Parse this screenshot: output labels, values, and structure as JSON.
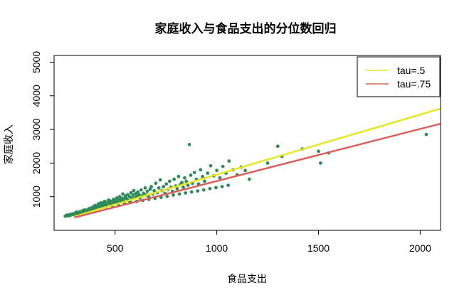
{
  "chart_data": {
    "type": "scatter",
    "title": "家庭收入与食品支出的分位数回归",
    "xlabel": "食品支出",
    "ylabel": "家庭收入",
    "xlim": [
      200,
      2100
    ],
    "ylim": [
      0,
      5200
    ],
    "x_ticks": [
      "500",
      "1000",
      "1500",
      "2000"
    ],
    "y_ticks": [
      "1000",
      "2000",
      "3000",
      "4000",
      "5000"
    ],
    "grid": false,
    "legend_position": "top-right",
    "point_color": "#2e8b57",
    "points": [
      [
        255,
        420
      ],
      [
        262,
        450
      ],
      [
        268,
        430
      ],
      [
        275,
        470
      ],
      [
        280,
        440
      ],
      [
        290,
        490
      ],
      [
        298,
        460
      ],
      [
        305,
        520
      ],
      [
        312,
        500
      ],
      [
        318,
        480
      ],
      [
        325,
        550
      ],
      [
        332,
        530
      ],
      [
        340,
        580
      ],
      [
        345,
        520
      ],
      [
        350,
        610
      ],
      [
        358,
        560
      ],
      [
        362,
        600
      ],
      [
        370,
        640
      ],
      [
        375,
        590
      ],
      [
        380,
        660
      ],
      [
        385,
        620
      ],
      [
        392,
        700
      ],
      [
        398,
        650
      ],
      [
        402,
        740
      ],
      [
        408,
        680
      ],
      [
        412,
        720
      ],
      [
        418,
        790
      ],
      [
        422,
        700
      ],
      [
        428,
        760
      ],
      [
        432,
        820
      ],
      [
        438,
        730
      ],
      [
        442,
        800
      ],
      [
        448,
        860
      ],
      [
        452,
        750
      ],
      [
        458,
        830
      ],
      [
        462,
        780
      ],
      [
        468,
        900
      ],
      [
        472,
        810
      ],
      [
        478,
        870
      ],
      [
        482,
        760
      ],
      [
        488,
        850
      ],
      [
        492,
        920
      ],
      [
        498,
        800
      ],
      [
        502,
        880
      ],
      [
        508,
        960
      ],
      [
        512,
        830
      ],
      [
        518,
        900
      ],
      [
        522,
        1000
      ],
      [
        528,
        870
      ],
      [
        532,
        950
      ],
      [
        538,
        1080
      ],
      [
        542,
        900
      ],
      [
        548,
        980
      ],
      [
        552,
        1020
      ],
      [
        558,
        940
      ],
      [
        562,
        1060
      ],
      [
        568,
        880
      ],
      [
        572,
        1000
      ],
      [
        578,
        1120
      ],
      [
        582,
        950
      ],
      [
        588,
        1050
      ],
      [
        592,
        1180
      ],
      [
        598,
        980
      ],
      [
        602,
        1090
      ],
      [
        608,
        1000
      ],
      [
        612,
        1140
      ],
      [
        618,
        1060
      ],
      [
        622,
        960
      ],
      [
        628,
        1200
      ],
      [
        632,
        1020
      ],
      [
        640,
        1100
      ],
      [
        648,
        1260
      ],
      [
        652,
        1050
      ],
      [
        658,
        1160
      ],
      [
        665,
        1000
      ],
      [
        672,
        1220
      ],
      [
        678,
        1300
      ],
      [
        685,
        1080
      ],
      [
        692,
        1180
      ],
      [
        700,
        1400
      ],
      [
        708,
        1120
      ],
      [
        715,
        1260
      ],
      [
        722,
        1500
      ],
      [
        730,
        1180
      ],
      [
        738,
        1300
      ],
      [
        745,
        1100
      ],
      [
        752,
        1380
      ],
      [
        760,
        1220
      ],
      [
        768,
        1460
      ],
      [
        775,
        1280
      ],
      [
        782,
        1160
      ],
      [
        790,
        1520
      ],
      [
        798,
        1320
      ],
      [
        805,
        1240
      ],
      [
        812,
        1600
      ],
      [
        820,
        1360
      ],
      [
        828,
        1420
      ],
      [
        835,
        1280
      ],
      [
        842,
        1560
      ],
      [
        850,
        1460
      ],
      [
        858,
        1340
      ],
      [
        865,
        2550
      ],
      [
        872,
        1640
      ],
      [
        880,
        1400
      ],
      [
        890,
        1720
      ],
      [
        900,
        1520
      ],
      [
        910,
        1380
      ],
      [
        920,
        1800
      ],
      [
        930,
        1600
      ],
      [
        940,
        1460
      ],
      [
        955,
        1700
      ],
      [
        970,
        1920
      ],
      [
        985,
        1620
      ],
      [
        1000,
        1780
      ],
      [
        1015,
        1560
      ],
      [
        1030,
        1900
      ],
      [
        1045,
        1700
      ],
      [
        1060,
        2060
      ],
      [
        1080,
        1800
      ],
      [
        1100,
        1650
      ],
      [
        1120,
        1880
      ],
      [
        1140,
        1780
      ],
      [
        1160,
        1520
      ],
      [
        1250,
        2000
      ],
      [
        1300,
        2500
      ],
      [
        1320,
        2200
      ],
      [
        1420,
        2420
      ],
      [
        1500,
        2350
      ],
      [
        1510,
        2000
      ],
      [
        1550,
        2300
      ],
      [
        2030,
        2850
      ],
      [
        295,
        470
      ],
      [
        310,
        540
      ],
      [
        336,
        560
      ],
      [
        366,
        570
      ],
      [
        396,
        610
      ],
      [
        426,
        660
      ],
      [
        456,
        690
      ],
      [
        486,
        730
      ],
      [
        516,
        760
      ],
      [
        546,
        800
      ],
      [
        576,
        830
      ],
      [
        606,
        860
      ],
      [
        636,
        890
      ],
      [
        666,
        920
      ],
      [
        696,
        950
      ],
      [
        726,
        980
      ],
      [
        756,
        1010
      ],
      [
        786,
        1050
      ],
      [
        816,
        1080
      ],
      [
        846,
        1110
      ],
      [
        876,
        1140
      ],
      [
        906,
        1170
      ],
      [
        936,
        1200
      ],
      [
        966,
        1240
      ],
      [
        996,
        1270
      ],
      [
        1026,
        1300
      ],
      [
        1056,
        1340
      ]
    ],
    "series": [
      {
        "name": "tau=.5",
        "color": "#e6e620",
        "x": [
          300,
          2100
        ],
        "y": [
          410,
          3620
        ]
      },
      {
        "name": "tau=.75",
        "color": "#d9605a",
        "x": [
          300,
          2100
        ],
        "y": [
          380,
          3170
        ]
      }
    ]
  }
}
